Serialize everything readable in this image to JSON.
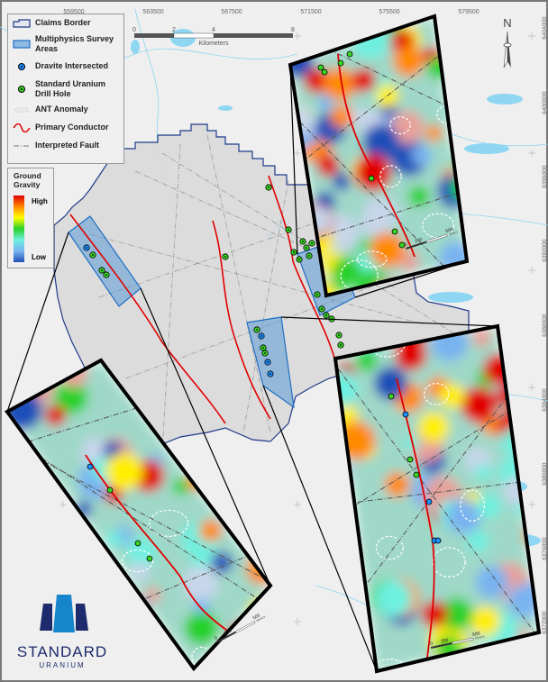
{
  "legend": {
    "items": [
      {
        "label": "Claims Border",
        "icon": "claims-border-symbol"
      },
      {
        "label": "Multiphysics Survey Areas",
        "icon": "survey-area-symbol"
      },
      {
        "label": "Dravite Intersected",
        "icon": "blue-dot-symbol"
      },
      {
        "label": "Standard Uranium Drill Hole",
        "icon": "green-dot-symbol"
      },
      {
        "label": "ANT Anomaly",
        "icon": "dashed-white-box-symbol"
      },
      {
        "label": "Primary Conductor",
        "icon": "red-wave-symbol"
      },
      {
        "label": "Interpreted Fault",
        "icon": "dash-dot-line-symbol"
      }
    ]
  },
  "gravity_legend": {
    "title": "Ground Gravity",
    "high": "High",
    "low": "Low"
  },
  "scale_bar": {
    "labels": [
      "0",
      "2",
      "4",
      "8"
    ],
    "unit": "Kilometers"
  },
  "inset_scale": {
    "labels": [
      "0",
      "250",
      "500"
    ],
    "unit": "Meters"
  },
  "easting_ticks": [
    "559500",
    "563500",
    "567500",
    "571500",
    "575500",
    "579500"
  ],
  "northing_ticks": [
    "6404000",
    "6400000",
    "6396000",
    "6392000",
    "6388000",
    "6384000",
    "6380000",
    "6376000",
    "6372000"
  ],
  "north_arrow": "N",
  "logo": {
    "line1": "STANDARD",
    "line2": "URANIUM"
  },
  "colors": {
    "claims_border": "#1f3a8a",
    "survey_area": "#5b9bd5",
    "dravite": "#1e90ff",
    "drill_hole": "#39d421",
    "conductor": "#e00000",
    "water": "#8fd6f2",
    "logo_dark": "#1d2a6b",
    "logo_light": "#1785c9"
  }
}
